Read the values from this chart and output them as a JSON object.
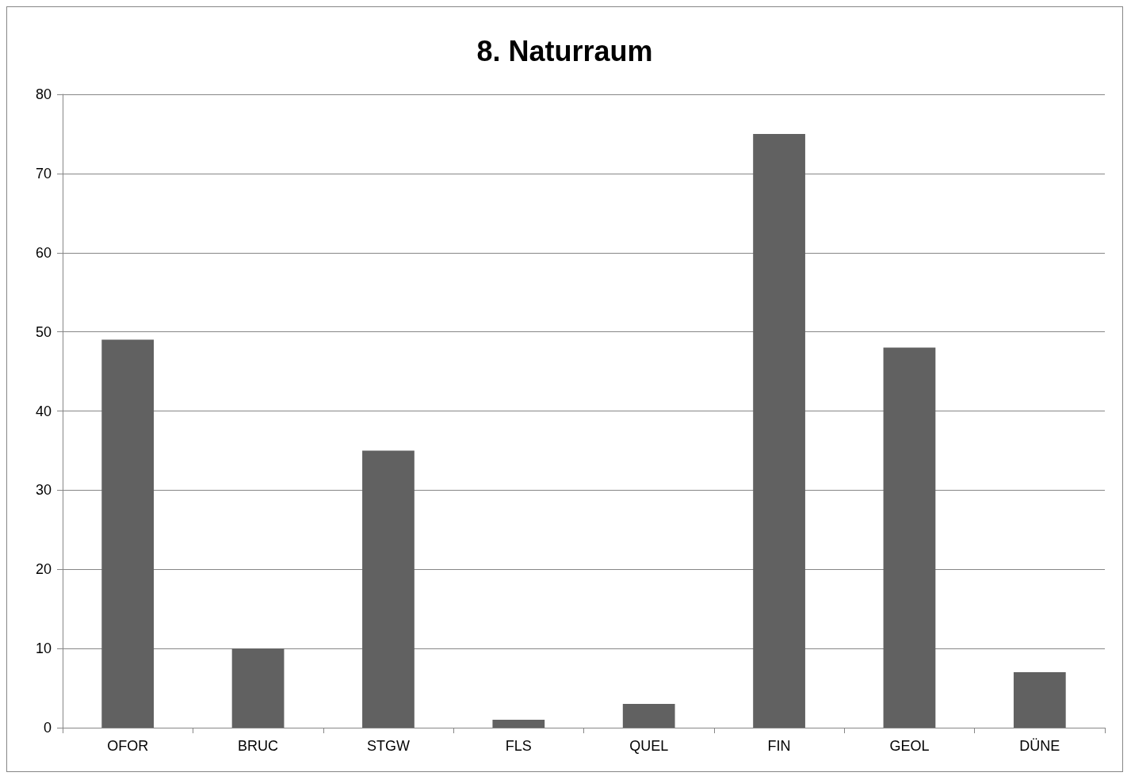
{
  "chart_data": {
    "type": "bar",
    "title": "8. Naturraum",
    "categories": [
      "OFOR",
      "BRUC",
      "STGW",
      "FLS",
      "QUEL",
      "FIN",
      "GEOL",
      "DÜNE"
    ],
    "values": [
      49,
      10,
      35,
      1,
      3,
      75,
      48,
      7
    ],
    "color": "#616161",
    "ylim": [
      0,
      80
    ],
    "yticks": [
      0,
      10,
      20,
      30,
      40,
      50,
      60,
      70,
      80
    ],
    "grid": "y"
  }
}
